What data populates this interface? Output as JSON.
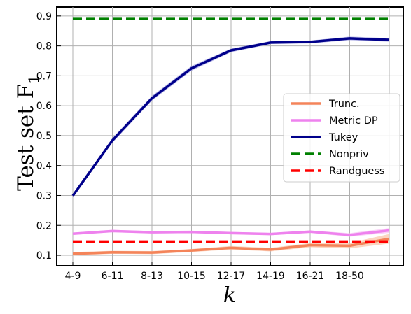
{
  "chart_data": {
    "type": "line",
    "title": "",
    "xlabel": "k",
    "ylabel": "Test set F",
    "ylabel_subscript": "1",
    "categories": [
      "4-9",
      "6-11",
      "8-13",
      "10-15",
      "12-17",
      "14-19",
      "16-21",
      "18-50",
      ""
    ],
    "yticks": [
      0.1,
      0.2,
      0.3,
      0.4,
      0.5,
      0.6,
      0.7,
      0.8,
      0.9
    ],
    "ylim": [
      0.065,
      0.93
    ],
    "grid": true,
    "legend_position": "center-right",
    "series": [
      {
        "name": "Trunc.",
        "color": "#f4845a",
        "band_color": "#f9c3a6",
        "dashed": false,
        "values": [
          0.105,
          0.11,
          0.109,
          0.116,
          0.125,
          0.119,
          0.134,
          0.132,
          0.155
        ],
        "band": [
          0.006,
          0.005,
          0.005,
          0.005,
          0.006,
          0.006,
          0.007,
          0.009,
          0.016
        ]
      },
      {
        "name": "Metric DP",
        "color": "#ee82ee",
        "band_color": "#f6c2f4",
        "dashed": false,
        "values": [
          0.172,
          0.181,
          0.177,
          0.178,
          0.174,
          0.171,
          0.179,
          0.168,
          0.183
        ],
        "band": [
          0.004,
          0.004,
          0.004,
          0.004,
          0.004,
          0.004,
          0.004,
          0.006,
          0.008
        ]
      },
      {
        "name": "Tukey",
        "color": "#00008b",
        "band_color": "#9c9ce0",
        "dashed": false,
        "values": [
          0.299,
          0.484,
          0.625,
          0.725,
          0.785,
          0.811,
          0.813,
          0.825,
          0.82
        ],
        "band": [
          0.006,
          0.008,
          0.008,
          0.008,
          0.006,
          0.005,
          0.005,
          0.006,
          0.006
        ]
      },
      {
        "name": "Nonpriv",
        "color": "#008000",
        "dashed": true,
        "values": [
          0.89,
          0.89,
          0.89,
          0.89,
          0.89,
          0.89,
          0.89,
          0.89,
          0.89
        ]
      },
      {
        "name": "Randguess",
        "color": "#ff0000",
        "dashed": true,
        "values": [
          0.146,
          0.146,
          0.146,
          0.146,
          0.146,
          0.146,
          0.146,
          0.146,
          0.146
        ]
      }
    ]
  }
}
